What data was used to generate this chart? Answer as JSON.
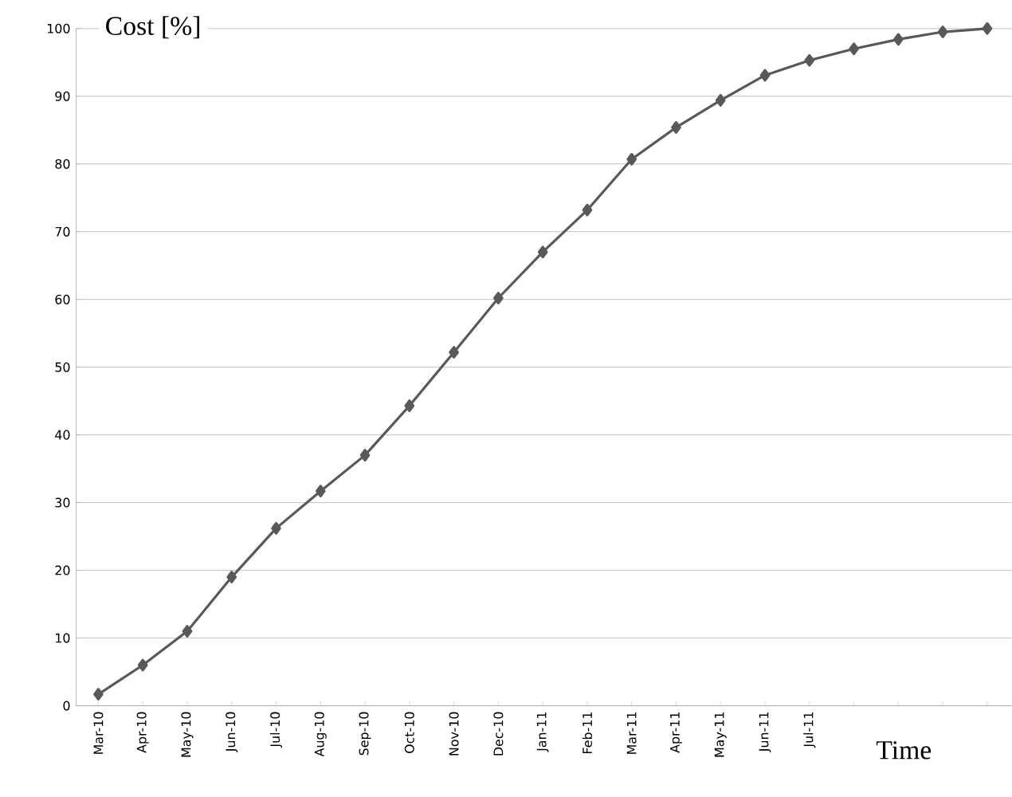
{
  "chart_data": {
    "type": "line",
    "xlabel": "Time",
    "ylabel": "Cost [%]",
    "categories": [
      "Mar-10",
      "Apr-10",
      "May-10",
      "Jun-10",
      "Jul-10",
      "Aug-10",
      "Sep-10",
      "Oct-10",
      "Nov-10",
      "Dec-10",
      "Jan-11",
      "Feb-11",
      "Mar-11",
      "Apr-11",
      "May-11",
      "Jun-11",
      "Jul-11",
      null,
      null,
      null,
      null
    ],
    "values": [
      1.7,
      6,
      11,
      19,
      26.2,
      31.7,
      37,
      44.3,
      52.2,
      60.2,
      67,
      73.2,
      80.7,
      85.4,
      89.4,
      93.1,
      95.3,
      97,
      98.4,
      99.5,
      100
    ],
    "color": "#595959",
    "marker": "diamond",
    "grid": "y",
    "ylim": [
      0,
      100
    ],
    "yticks": [
      0,
      10,
      20,
      30,
      40,
      50,
      60,
      70,
      80,
      90,
      100
    ]
  }
}
